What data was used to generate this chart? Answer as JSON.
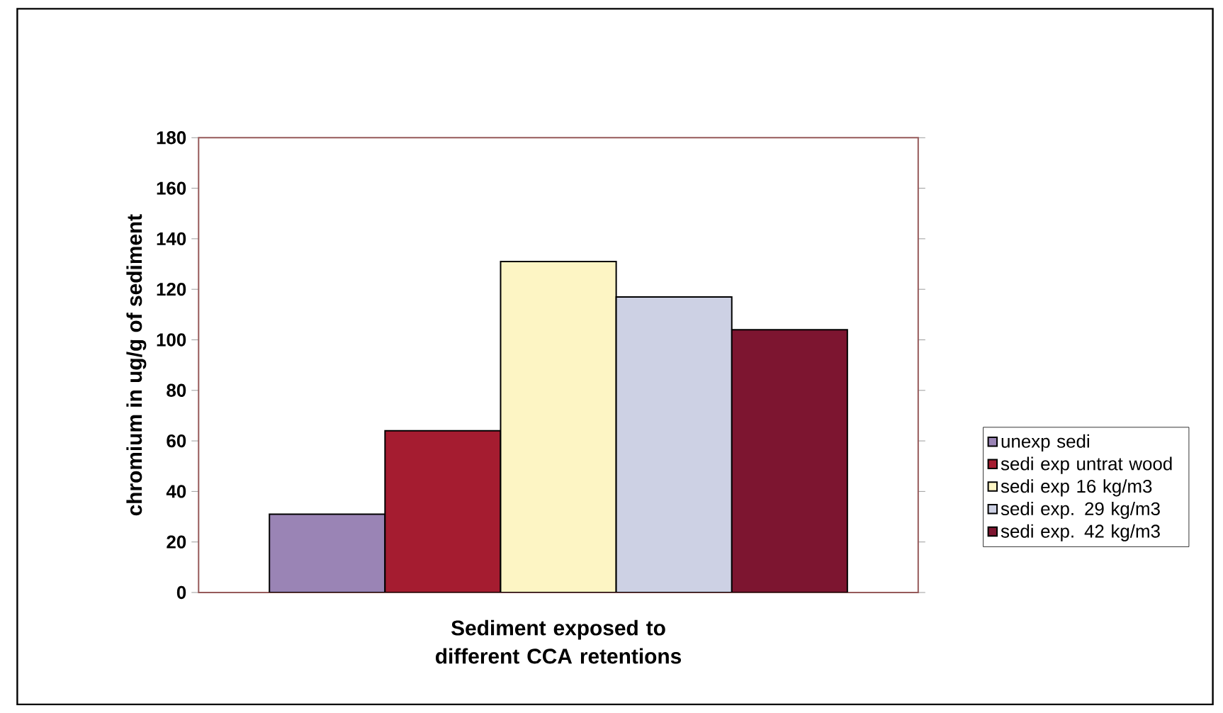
{
  "chart_data": {
    "type": "bar",
    "xlabel": "Sediment exposed to different CCA retentions",
    "ylabel": "chromium in ug/g of sediment",
    "categories": [
      null
    ],
    "series": [
      {
        "name": "unexp sedi",
        "color": "#9a84b5",
        "values": [
          31
        ]
      },
      {
        "name": "sedi exp untrat wood",
        "color": "#a51c30",
        "values": [
          64
        ]
      },
      {
        "name": "sedi exp 16 kg/m3",
        "color": "#fdf5c4",
        "values": [
          131
        ]
      },
      {
        "name": "sedi exp. 29 kg/m3",
        "color": "#cdd1e4",
        "values": [
          117
        ]
      },
      {
        "name": "sedi exp. 42 kg/m3",
        "color": "#7d1530",
        "values": [
          104
        ]
      }
    ],
    "ylim": [
      0,
      180
    ],
    "yticks": [
      0,
      20,
      40,
      60,
      80,
      100,
      120,
      140,
      160,
      180
    ],
    "legend": "right"
  }
}
